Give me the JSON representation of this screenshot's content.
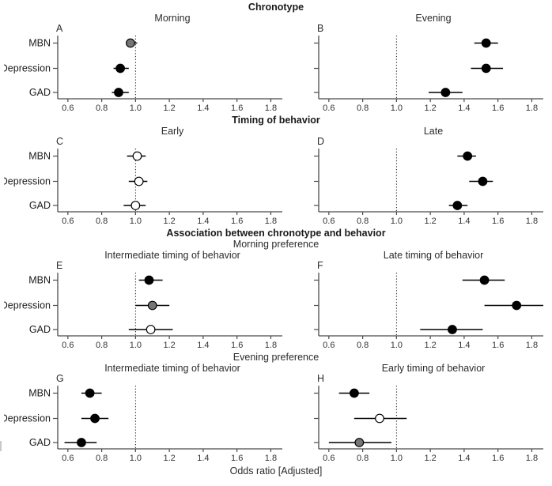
{
  "figure": {
    "xlabel": "Odds ratio [Adjusted]",
    "categories": [
      "MBN",
      "Depression",
      "GAD"
    ],
    "colors": {
      "black": "#000000",
      "gray": "#757575",
      "white": "#ffffff",
      "axis": "#4a4a4a",
      "tick_text": "#333333",
      "label_text": "#1a1a1a",
      "refline": "#1a1a1a"
    }
  },
  "sections": [
    {
      "header": "Chronotype",
      "subheader": ""
    },
    {
      "header": "Timing of behavior",
      "subheader": ""
    },
    {
      "header": "Association between chronotype and behavior",
      "subheader": "Morning preference"
    },
    {
      "header": "",
      "subheader": "Evening preference"
    }
  ],
  "chart_data": [
    {
      "type": "forest",
      "letter": "A",
      "title": "Morning",
      "side": "left",
      "xlabel": "Odds ratio [Adjusted]",
      "xlim": [
        0.54,
        1.84
      ],
      "ticks": [
        0.6,
        0.8,
        1.0,
        1.2,
        1.4,
        1.6,
        1.8
      ],
      "refline": 1.0,
      "categories": [
        "MBN",
        "Depression",
        "GAD"
      ],
      "points": [
        {
          "label": "MBN",
          "or": 0.97,
          "ci": [
            0.95,
            1.01
          ],
          "fill": "gray"
        },
        {
          "label": "Depression",
          "or": 0.91,
          "ci": [
            0.87,
            0.96
          ],
          "fill": "black"
        },
        {
          "label": "GAD",
          "or": 0.9,
          "ci": [
            0.86,
            0.96
          ],
          "fill": "black"
        }
      ]
    },
    {
      "type": "forest",
      "letter": "B",
      "title": "Evening",
      "side": "right",
      "xlabel": "Odds ratio [Adjusted]",
      "xlim": [
        0.54,
        1.84
      ],
      "ticks": [
        0.6,
        0.8,
        1.0,
        1.2,
        1.4,
        1.6,
        1.8
      ],
      "refline": 1.0,
      "categories": [
        "MBN",
        "Depression",
        "GAD"
      ],
      "points": [
        {
          "label": "MBN",
          "or": 1.53,
          "ci": [
            1.46,
            1.6
          ],
          "fill": "black"
        },
        {
          "label": "Depression",
          "or": 1.53,
          "ci": [
            1.44,
            1.63
          ],
          "fill": "black"
        },
        {
          "label": "GAD",
          "or": 1.29,
          "ci": [
            1.19,
            1.39
          ],
          "fill": "black"
        }
      ]
    },
    {
      "type": "forest",
      "letter": "C",
      "title": "Early",
      "side": "left",
      "xlabel": "Odds ratio [Adjusted]",
      "xlim": [
        0.54,
        1.84
      ],
      "ticks": [
        0.6,
        0.8,
        1.0,
        1.2,
        1.4,
        1.6,
        1.8
      ],
      "refline": 1.0,
      "categories": [
        "MBN",
        "Depression",
        "GAD"
      ],
      "points": [
        {
          "label": "MBN",
          "or": 1.01,
          "ci": [
            0.95,
            1.06
          ],
          "fill": "white"
        },
        {
          "label": "Depression",
          "or": 1.02,
          "ci": [
            0.96,
            1.07
          ],
          "fill": "white"
        },
        {
          "label": "GAD",
          "or": 1.0,
          "ci": [
            0.93,
            1.06
          ],
          "fill": "white"
        }
      ]
    },
    {
      "type": "forest",
      "letter": "D",
      "title": "Late",
      "side": "right",
      "xlabel": "Odds ratio [Adjusted]",
      "xlim": [
        0.54,
        1.84
      ],
      "ticks": [
        0.6,
        0.8,
        1.0,
        1.2,
        1.4,
        1.6,
        1.8
      ],
      "refline": 1.0,
      "categories": [
        "MBN",
        "Depression",
        "GAD"
      ],
      "points": [
        {
          "label": "MBN",
          "or": 1.42,
          "ci": [
            1.36,
            1.47
          ],
          "fill": "black"
        },
        {
          "label": "Depression",
          "or": 1.51,
          "ci": [
            1.43,
            1.57
          ],
          "fill": "black"
        },
        {
          "label": "GAD",
          "or": 1.36,
          "ci": [
            1.31,
            1.42
          ],
          "fill": "black"
        }
      ]
    },
    {
      "type": "forest",
      "letter": "E",
      "title": "Intermediate timing of behavior",
      "side": "left",
      "xlabel": "Odds ratio [Adjusted]",
      "xlim": [
        0.54,
        1.84
      ],
      "ticks": [
        0.6,
        0.8,
        1.0,
        1.2,
        1.4,
        1.6,
        1.8
      ],
      "refline": 1.0,
      "categories": [
        "MBN",
        "Depression",
        "GAD"
      ],
      "points": [
        {
          "label": "MBN",
          "or": 1.08,
          "ci": [
            1.02,
            1.16
          ],
          "fill": "black"
        },
        {
          "label": "Depression",
          "or": 1.1,
          "ci": [
            1.0,
            1.2
          ],
          "fill": "gray"
        },
        {
          "label": "GAD",
          "or": 1.09,
          "ci": [
            0.96,
            1.22
          ],
          "fill": "white"
        }
      ]
    },
    {
      "type": "forest",
      "letter": "F",
      "title": "Late timing of behavior",
      "side": "right",
      "xlabel": "Odds ratio [Adjusted]",
      "xlim": [
        0.54,
        1.84
      ],
      "ticks": [
        0.6,
        0.8,
        1.0,
        1.2,
        1.4,
        1.6,
        1.8
      ],
      "refline": 1.0,
      "categories": [
        "MBN",
        "Depression",
        "GAD"
      ],
      "points": [
        {
          "label": "MBN",
          "or": 1.52,
          "ci": [
            1.39,
            1.64
          ],
          "fill": "black"
        },
        {
          "label": "Depression",
          "or": 1.71,
          "ci": [
            1.52,
            1.9
          ],
          "fill": "black"
        },
        {
          "label": "GAD",
          "or": 1.33,
          "ci": [
            1.14,
            1.51
          ],
          "fill": "black"
        }
      ]
    },
    {
      "type": "forest",
      "letter": "G",
      "title": "Intermediate timing of behavior",
      "side": "left",
      "xlabel": "Odds ratio [Adjusted]",
      "xlim": [
        0.54,
        1.84
      ],
      "ticks": [
        0.6,
        0.8,
        1.0,
        1.2,
        1.4,
        1.6,
        1.8
      ],
      "refline": 1.0,
      "categories": [
        "MBN",
        "Depression",
        "GAD"
      ],
      "points": [
        {
          "label": "MBN",
          "or": 0.73,
          "ci": [
            0.68,
            0.8
          ],
          "fill": "black"
        },
        {
          "label": "Depression",
          "or": 0.76,
          "ci": [
            0.68,
            0.84
          ],
          "fill": "black"
        },
        {
          "label": "GAD",
          "or": 0.68,
          "ci": [
            0.58,
            0.77
          ],
          "fill": "black"
        }
      ]
    },
    {
      "type": "forest",
      "letter": "H",
      "title": "Early timing of behavior",
      "side": "right",
      "xlabel": "Odds ratio [Adjusted]",
      "xlim": [
        0.54,
        1.84
      ],
      "ticks": [
        0.6,
        0.8,
        1.0,
        1.2,
        1.4,
        1.6,
        1.8
      ],
      "refline": 1.0,
      "categories": [
        "MBN",
        "Depression",
        "GAD"
      ],
      "points": [
        {
          "label": "MBN",
          "or": 0.75,
          "ci": [
            0.66,
            0.84
          ],
          "fill": "black"
        },
        {
          "label": "Depression",
          "or": 0.9,
          "ci": [
            0.75,
            1.06
          ],
          "fill": "white"
        },
        {
          "label": "GAD",
          "or": 0.78,
          "ci": [
            0.6,
            0.97
          ],
          "fill": "gray"
        }
      ]
    }
  ]
}
